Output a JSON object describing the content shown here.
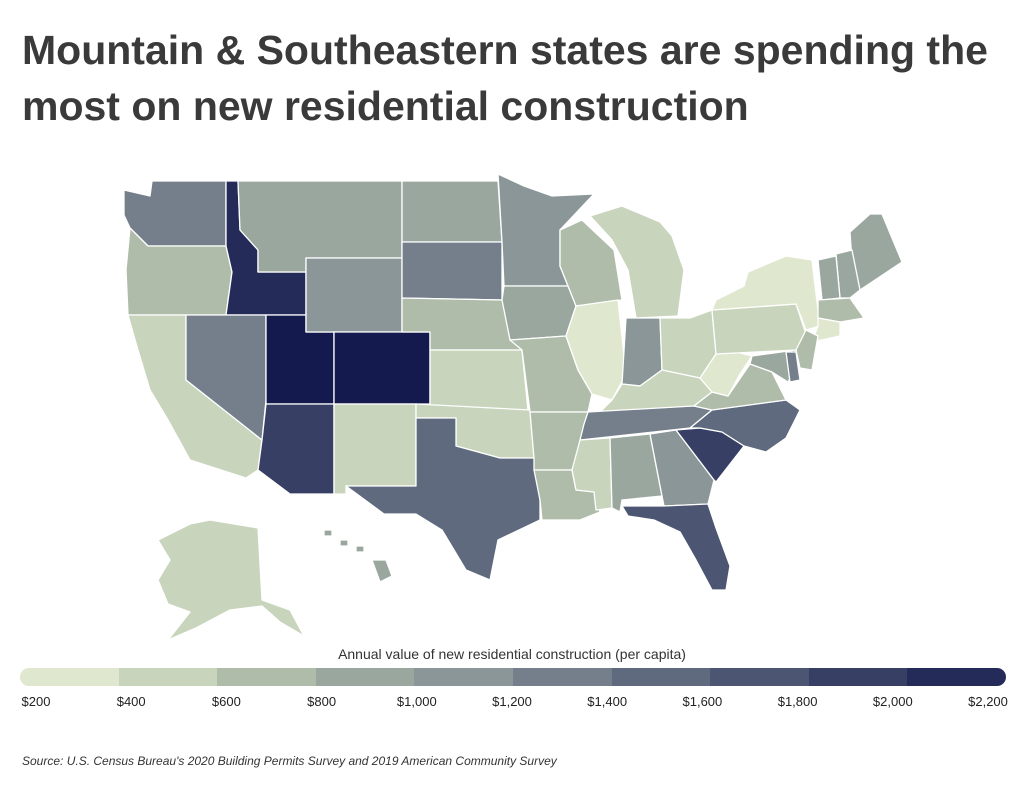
{
  "header": {
    "title": "Mountain & Southeastern states are spending the most on new residential construction"
  },
  "legend": {
    "title": "Annual value of new residential construction (per capita)",
    "ticks": [
      "$200",
      "$400",
      "$600",
      "$800",
      "$1,000",
      "$1,200",
      "$1,400",
      "$1,600",
      "$1,800",
      "$2,000",
      "$2,200"
    ],
    "colors": [
      "#dfe7cf",
      "#c8d4bc",
      "#afbcaa",
      "#9aa79e",
      "#8a9697",
      "#747f8b",
      "#5f6a7e",
      "#4c5672",
      "#383f65",
      "#252b59",
      "#141a4d"
    ]
  },
  "footer": {
    "source": "Source:  U.S. Census Bureau's 2020 Building Permits Survey and 2019 American Community Survey"
  },
  "map_data": {
    "regions": [
      {
        "id": "WA",
        "tier": 5
      },
      {
        "id": "OR",
        "tier": 2
      },
      {
        "id": "CA",
        "tier": 1
      },
      {
        "id": "ID",
        "tier": 9
      },
      {
        "id": "NV",
        "tier": 5
      },
      {
        "id": "UT",
        "tier": 10
      },
      {
        "id": "AZ",
        "tier": 8
      },
      {
        "id": "MT",
        "tier": 3
      },
      {
        "id": "WY",
        "tier": 4
      },
      {
        "id": "CO",
        "tier": 10
      },
      {
        "id": "NM",
        "tier": 1
      },
      {
        "id": "ND",
        "tier": 3
      },
      {
        "id": "SD",
        "tier": 5
      },
      {
        "id": "NE",
        "tier": 2
      },
      {
        "id": "KS",
        "tier": 1
      },
      {
        "id": "OK",
        "tier": 1
      },
      {
        "id": "TX",
        "tier": 6
      },
      {
        "id": "MN",
        "tier": 4
      },
      {
        "id": "IA",
        "tier": 3
      },
      {
        "id": "MO",
        "tier": 2
      },
      {
        "id": "AR",
        "tier": 2
      },
      {
        "id": "LA",
        "tier": 2
      },
      {
        "id": "WI",
        "tier": 2
      },
      {
        "id": "IL",
        "tier": 0
      },
      {
        "id": "MI",
        "tier": 1
      },
      {
        "id": "IN",
        "tier": 4
      },
      {
        "id": "OH",
        "tier": 1
      },
      {
        "id": "KY",
        "tier": 1
      },
      {
        "id": "TN",
        "tier": 5
      },
      {
        "id": "MS",
        "tier": 1
      },
      {
        "id": "AL",
        "tier": 3
      },
      {
        "id": "GA",
        "tier": 4
      },
      {
        "id": "FL",
        "tier": 7
      },
      {
        "id": "SC",
        "tier": 8
      },
      {
        "id": "NC",
        "tier": 6
      },
      {
        "id": "VA",
        "tier": 2
      },
      {
        "id": "WV",
        "tier": 0
      },
      {
        "id": "PA",
        "tier": 1
      },
      {
        "id": "NY",
        "tier": 0
      },
      {
        "id": "ME",
        "tier": 3
      },
      {
        "id": "NH",
        "tier": 3
      },
      {
        "id": "VT",
        "tier": 3
      },
      {
        "id": "MA",
        "tier": 2
      },
      {
        "id": "CT",
        "tier": 0
      },
      {
        "id": "NJ",
        "tier": 2
      },
      {
        "id": "MD",
        "tier": 3
      },
      {
        "id": "DE",
        "tier": 5
      },
      {
        "id": "AK",
        "tier": 1
      },
      {
        "id": "HI",
        "tier": 3
      }
    ]
  }
}
